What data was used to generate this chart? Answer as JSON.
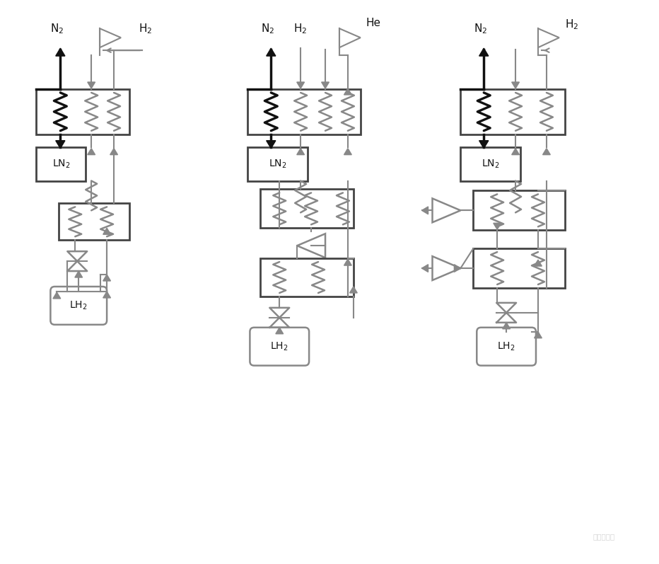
{
  "bg": "#ffffff",
  "black": "#111111",
  "gray": "#888888",
  "dark": "#444444",
  "figsize": [
    9.32,
    7.97
  ],
  "dpi": 100
}
